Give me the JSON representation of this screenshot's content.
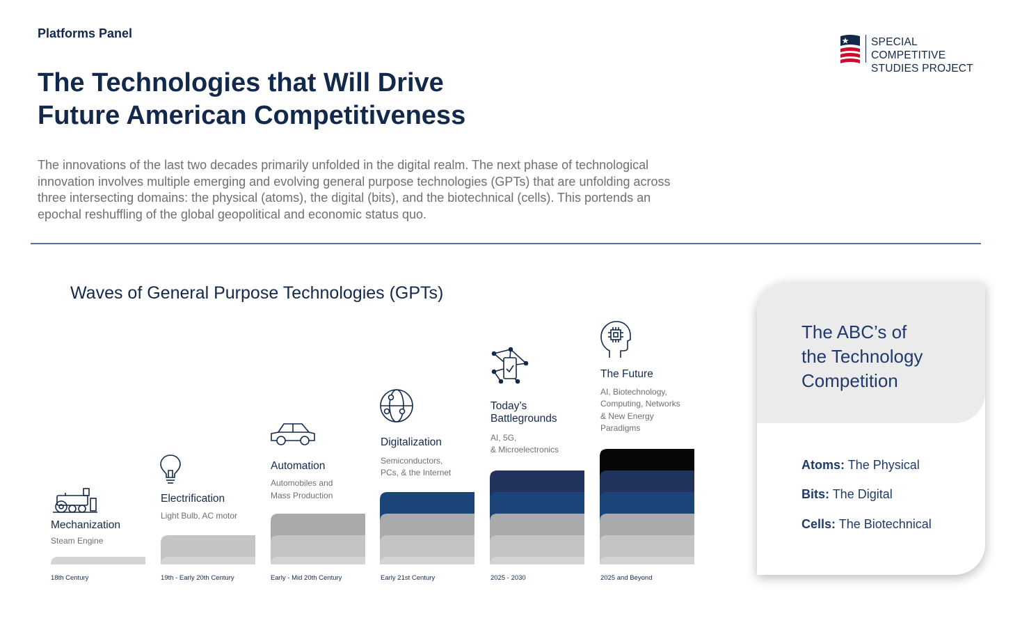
{
  "header": {
    "panel_label": "Platforms Panel",
    "title_line1": "The Technologies that Will Drive",
    "title_line2": "Future American Competitiveness",
    "intro": "The innovations of the last two decades primarily unfolded in the digital realm. The next phase of technological innovation involves multiple emerging and evolving general purpose technologies (GPTs) that are unfolding across three intersecting domains: the physical (atoms), the digital (bits), and the biotechnical (cells). This portends an epochal reshuffling of the global geopolitical and economic status quo."
  },
  "logo": {
    "line1": "SPECIAL COMPETITIVE",
    "line2": "STUDIES PROJECT"
  },
  "waves": {
    "title": "Waves of General Purpose Technologies (GPTs)",
    "items": [
      {
        "title": "Mechanization",
        "sub1": "Steam Engine",
        "sub2": "",
        "era": "18th Century",
        "icon": "steam-engine-icon",
        "layers": 1
      },
      {
        "title": "Electrification",
        "sub1": "Light Bulb, AC motor",
        "sub2": "",
        "era": "19th - Early 20th Century",
        "icon": "light-bulb-icon",
        "layers": 2
      },
      {
        "title": "Automation",
        "sub1": "Automobiles and",
        "sub2": "Mass Production",
        "era": "Early - Mid 20th Century",
        "icon": "car-icon",
        "layers": 3
      },
      {
        "title": "Digitalization",
        "sub1": "Semiconductors,",
        "sub2": "PCs, & the Internet",
        "era": "Early 21st Century",
        "icon": "globe-network-icon",
        "layers": 4
      },
      {
        "title_line1": "Today’s",
        "title_line2": "Battlegrounds",
        "sub1": "AI, 5G,",
        "sub2": "& Microelectronics",
        "era": "2025 - 2030",
        "icon": "connected-device-icon",
        "layers": 5
      },
      {
        "title": "The Future",
        "sub1": "AI, Biotechnology,",
        "sub2": "Computing, Networks",
        "sub3": "& New Energy",
        "sub4": "Paradigms",
        "era": "2025 and Beyond",
        "icon": "ai-head-icon",
        "layers": 6
      }
    ],
    "layer_colors": [
      "#d4d4d4",
      "#c4c4c6",
      "#a9aaac",
      "#1b4478",
      "#20335c",
      "#050608"
    ]
  },
  "abc_card": {
    "title_line1": "The ABC’s of",
    "title_line2": "the Technology",
    "title_line3": "Competition",
    "atoms_label": "Atoms:",
    "atoms_value": "The Physical",
    "bits_label": "Bits:",
    "bits_value": "The Digital",
    "cells_label": "Cells:",
    "cells_value": "The Biotechnical"
  },
  "colors": {
    "navy": "#13294b",
    "flag_red": "#c8102e",
    "flag_blue": "#13294b"
  }
}
